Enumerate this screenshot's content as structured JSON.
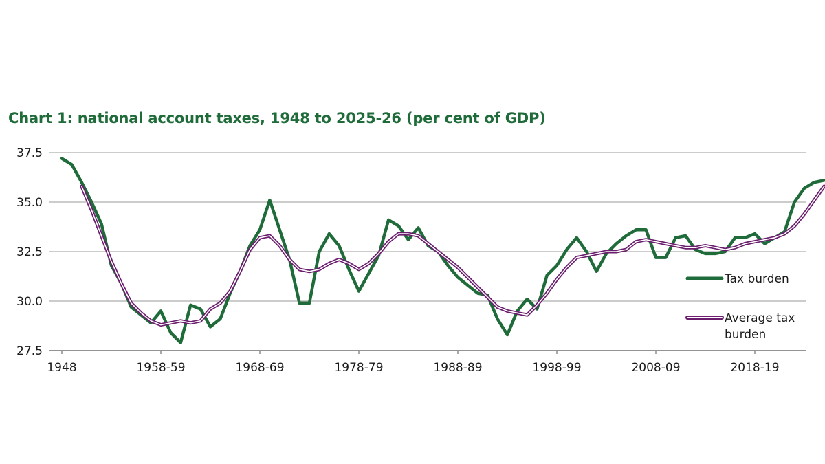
{
  "chart_data": {
    "type": "line",
    "title": "Chart 1: national account taxes, 1948 to 2025-26 (per cent of GDP)",
    "xlabel": "",
    "ylabel": "",
    "ylim": [
      27.5,
      37.5
    ],
    "y_ticks": [
      "27.5",
      "30.0",
      "32.5",
      "35.0",
      "37.5"
    ],
    "x_tick_labels": [
      {
        "label": "1948",
        "index": 0
      },
      {
        "label": "1958-59",
        "index": 10
      },
      {
        "label": "1968-69",
        "index": 20
      },
      {
        "label": "1978-79",
        "index": 30
      },
      {
        "label": "1988-89",
        "index": 40
      },
      {
        "label": "1998-99",
        "index": 50
      },
      {
        "label": "2008-09",
        "index": 60
      },
      {
        "label": "2018-19",
        "index": 70
      }
    ],
    "grid": true,
    "legend_position": "right",
    "series": [
      {
        "name": "Tax burden",
        "color": "#1f6b3a",
        "start_index": 0,
        "values": [
          37.2,
          36.9,
          36.0,
          35.0,
          33.9,
          31.8,
          30.9,
          29.7,
          29.3,
          28.9,
          29.5,
          28.4,
          27.9,
          29.8,
          29.6,
          28.7,
          29.1,
          30.4,
          31.5,
          32.8,
          33.6,
          35.1,
          33.6,
          32.1,
          29.9,
          29.9,
          32.5,
          33.4,
          32.8,
          31.6,
          30.5,
          31.4,
          32.3,
          34.1,
          33.8,
          33.1,
          33.7,
          32.8,
          32.5,
          31.8,
          31.2,
          30.8,
          30.4,
          30.3,
          29.1,
          28.3,
          29.5,
          30.1,
          29.6,
          31.3,
          31.8,
          32.6,
          33.2,
          32.5,
          31.5,
          32.4,
          32.9,
          33.3,
          33.6,
          33.6,
          32.2,
          32.2,
          33.2,
          33.3,
          32.6,
          32.4,
          32.4,
          32.5,
          33.2,
          33.2,
          33.4,
          32.9,
          33.2,
          33.5,
          35.0,
          35.7,
          36.0,
          36.1
        ]
      },
      {
        "name": "Average tax burden",
        "color": "#6b1e6e",
        "start_index": 2,
        "values": [
          35.8,
          34.6,
          33.3,
          32.0,
          30.9,
          29.9,
          29.4,
          29.0,
          28.8,
          28.9,
          29.0,
          28.9,
          29.0,
          29.6,
          29.9,
          30.5,
          31.5,
          32.6,
          33.2,
          33.3,
          32.8,
          32.1,
          31.6,
          31.5,
          31.6,
          31.9,
          32.1,
          31.9,
          31.6,
          31.9,
          32.4,
          33.0,
          33.4,
          33.4,
          33.3,
          32.9,
          32.5,
          32.1,
          31.7,
          31.2,
          30.7,
          30.2,
          29.7,
          29.5,
          29.4,
          29.3,
          29.8,
          30.4,
          31.1,
          31.7,
          32.2,
          32.3,
          32.4,
          32.5,
          32.5,
          32.6,
          33.0,
          33.1,
          33.0,
          32.9,
          32.8,
          32.7,
          32.7,
          32.8,
          32.7,
          32.6,
          32.7,
          32.9,
          33.0,
          33.1,
          33.2,
          33.4,
          33.8,
          34.4,
          35.1,
          35.8
        ]
      }
    ]
  }
}
